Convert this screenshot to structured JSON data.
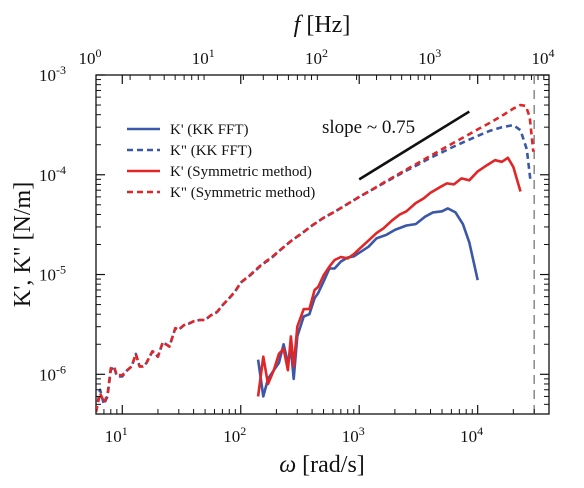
{
  "chart_data": {
    "type": "line",
    "x_scale": "log",
    "y_scale": "log",
    "xlabel_prefix": "ω",
    "xlabel_suffix": " [rad/s]",
    "ylabel": "K', K\" [N/m]",
    "top_xlabel_prefix": "f",
    "top_xlabel_suffix": " [Hz]",
    "xlim": [
      6,
      40000
    ],
    "ylim": [
      4e-07,
      0.001
    ],
    "top_xlim": [
      1,
      10000
    ],
    "x_ticks": [
      {
        "value": 10,
        "base": "10",
        "exp": "1"
      },
      {
        "value": 100,
        "base": "10",
        "exp": "2"
      },
      {
        "value": 1000,
        "base": "10",
        "exp": "3"
      },
      {
        "value": 10000,
        "base": "10",
        "exp": "4"
      }
    ],
    "top_ticks": [
      {
        "value": 1,
        "base": "10",
        "exp": "0"
      },
      {
        "value": 10,
        "base": "10",
        "exp": "1"
      },
      {
        "value": 100,
        "base": "10",
        "exp": "2"
      },
      {
        "value": 1000,
        "base": "10",
        "exp": "3"
      },
      {
        "value": 10000,
        "base": "10",
        "exp": "4"
      }
    ],
    "y_ticks": [
      {
        "value": 1e-06,
        "base": "10",
        "exp": "-6"
      },
      {
        "value": 1e-05,
        "base": "10",
        "exp": "-5"
      },
      {
        "value": 0.0001,
        "base": "10",
        "exp": "-4"
      },
      {
        "value": 0.001,
        "base": "10",
        "exp": "-3"
      }
    ],
    "series": [
      {
        "name": "K' (KK FFT)",
        "color": "#3a57a8",
        "dash": "solid",
        "x": [
          140,
          155,
          170,
          190,
          210,
          230,
          250,
          265,
          280,
          300,
          340,
          380,
          420,
          450,
          500,
          560,
          620,
          700,
          800,
          900,
          1000,
          1200,
          1400,
          1700,
          2000,
          2500,
          3000,
          3600,
          4200,
          5000,
          5600,
          6500,
          7500,
          8500,
          10000
        ],
        "y": [
          1.4e-06,
          6e-07,
          9e-07,
          1.1e-06,
          1.3e-06,
          2e-06,
          1.3e-06,
          1.8e-06,
          9e-07,
          2.4e-06,
          3.8e-06,
          4e-06,
          5.8e-06,
          6.5e-06,
          8.5e-06,
          1.15e-05,
          1.15e-05,
          1.35e-05,
          1.48e-05,
          1.52e-05,
          1.65e-05,
          1.9e-05,
          2.3e-05,
          2.5e-05,
          2.8e-05,
          3.1e-05,
          3.2e-05,
          3.8e-05,
          4.2e-05,
          4.3e-05,
          4.6e-05,
          4.2e-05,
          3.2e-05,
          2.1e-05,
          8.8e-06
        ]
      },
      {
        "name": "K\" (KK FFT)",
        "color": "#3a57a8",
        "dash": "dashed",
        "x": [
          6,
          6.5,
          7,
          7.5,
          8,
          8.5,
          9,
          10,
          11,
          12,
          13,
          14,
          15,
          16,
          17,
          18,
          20,
          22,
          25,
          28,
          30,
          33,
          36,
          40,
          45,
          50,
          56,
          63,
          70,
          80,
          90,
          100,
          120,
          150,
          180,
          220,
          270,
          330,
          400,
          500,
          630,
          800,
          1000,
          1260,
          1600,
          2000,
          2500,
          3200,
          4000,
          5000,
          6300,
          8000,
          10000,
          12600,
          16000,
          20000,
          23000,
          26000,
          28000
        ],
        "y": [
          4.2e-07,
          7e-07,
          5e-07,
          6e-07,
          1.1e-06,
          1.2e-06,
          9.5e-07,
          9.5e-07,
          1.1e-06,
          1.2e-06,
          1.6e-06,
          1.2e-06,
          1.2e-06,
          1.3e-06,
          1.5e-06,
          1.7e-06,
          1.5e-06,
          2.1e-06,
          1.9e-06,
          2.9e-06,
          2.8e-06,
          3.1e-06,
          3.2e-06,
          3.4e-06,
          3.5e-06,
          3.5e-06,
          3.9e-06,
          4.2e-06,
          4.9e-06,
          5.8e-06,
          6.8e-06,
          8.3e-06,
          9.8e-06,
          1.25e-05,
          1.45e-05,
          1.8e-05,
          2.2e-05,
          2.6e-05,
          3.1e-05,
          3.7e-05,
          4.3e-05,
          5.1e-05,
          6e-05,
          7e-05,
          8.2e-05,
          9.5e-05,
          0.00011,
          0.000128,
          0.000148,
          0.000168,
          0.000192,
          0.000218,
          0.000245,
          0.000275,
          0.0003,
          0.000315,
          0.00028,
          0.00018,
          8.5e-05
        ]
      },
      {
        "name": "K' (Symmetric method)",
        "color": "#e02626",
        "dash": "solid",
        "x": [
          140,
          155,
          170,
          190,
          210,
          230,
          250,
          265,
          280,
          300,
          340,
          380,
          420,
          450,
          500,
          560,
          620,
          700,
          800,
          900,
          1000,
          1200,
          1400,
          1600,
          1900,
          2200,
          2500,
          3000,
          3500,
          4000,
          4800,
          5500,
          6300,
          7300,
          8500,
          10000,
          12000,
          14000,
          16000,
          18000,
          20000,
          23000
        ],
        "y": [
          6e-07,
          1.5e-06,
          8e-07,
          1.1e-06,
          1.6e-06,
          1.8e-06,
          1.1e-06,
          2.4e-06,
          1.2e-06,
          3e-06,
          4.5e-06,
          4.5e-06,
          7e-06,
          7.5e-06,
          9.8e-06,
          1.2e-05,
          1.4e-05,
          1.5e-05,
          1.45e-05,
          1.6e-05,
          1.8e-05,
          2.2e-05,
          2.6e-05,
          2.9e-05,
          3.5e-05,
          4e-05,
          4.3e-05,
          5.2e-05,
          5.8e-05,
          6.6e-05,
          7.5e-05,
          8.2e-05,
          8e-05,
          9.2e-05,
          8.8e-05,
          0.000108,
          0.000125,
          0.00014,
          0.000135,
          0.000148,
          0.00012,
          6.8e-05
        ]
      },
      {
        "name": "K\" (Symmetric method)",
        "color": "#e02626",
        "dash": "dashed",
        "x": [
          6,
          6.5,
          7,
          7.5,
          8,
          8.5,
          9,
          10,
          11,
          12,
          13,
          14,
          15,
          16,
          17,
          18,
          20,
          22,
          25,
          28,
          30,
          33,
          36,
          40,
          45,
          50,
          56,
          63,
          70,
          80,
          90,
          100,
          120,
          150,
          180,
          220,
          270,
          330,
          400,
          500,
          630,
          800,
          1000,
          1260,
          1600,
          2000,
          2500,
          3200,
          4000,
          5000,
          6300,
          8000,
          10000,
          12600,
          16000,
          20000,
          23000,
          25500,
          27500,
          29500
        ],
        "y": [
          4.2e-07,
          6.5e-07,
          5.2e-07,
          6.2e-07,
          1.15e-06,
          1.2e-06,
          9.8e-07,
          9.8e-07,
          1.1e-06,
          1.2e-06,
          1.6e-06,
          1.2e-06,
          1.2e-06,
          1.3e-06,
          1.5e-06,
          1.7e-06,
          1.5e-06,
          2.1e-06,
          1.9e-06,
          2.9e-06,
          2.8e-06,
          3.1e-06,
          3.2e-06,
          3.4e-06,
          3.5e-06,
          3.5e-06,
          3.9e-06,
          4.2e-06,
          4.9e-06,
          5.8e-06,
          6.8e-06,
          8.3e-06,
          9.9e-06,
          1.26e-05,
          1.47e-05,
          1.8e-05,
          2.2e-05,
          2.6e-05,
          3.1e-05,
          3.7e-05,
          4.3e-05,
          5.1e-05,
          6e-05,
          7e-05,
          8.3e-05,
          9.7e-05,
          0.000113,
          0.000133,
          0.000155,
          0.00018,
          0.00021,
          0.000245,
          0.000285,
          0.00033,
          0.00039,
          0.00046,
          0.0005,
          0.00049,
          0.00038,
          0.00017
        ]
      }
    ],
    "slope_line": {
      "x": [
        1000,
        8500
      ],
      "y": [
        9e-05,
        0.00043
      ]
    },
    "slope_label": "slope ~ 0.75",
    "vline": {
      "x": 30000,
      "color": "#888888"
    },
    "legend_position": "upper-left",
    "grid": false
  }
}
